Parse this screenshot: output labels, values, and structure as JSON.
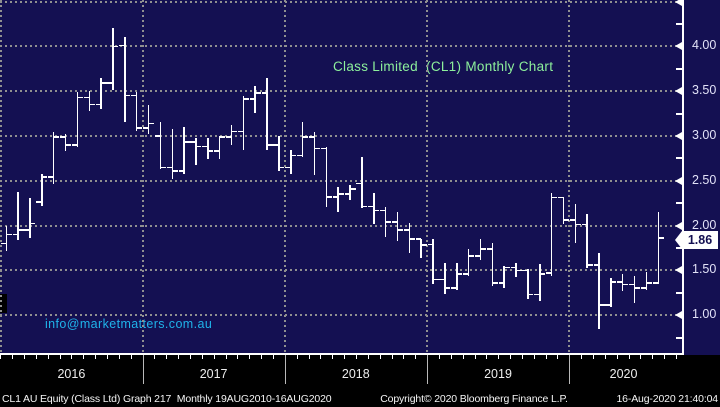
{
  "title": "Class Limited  (CL1) Monthly Chart",
  "watermark": "info@marketmatters.com.au",
  "last_price": {
    "value": 1.86,
    "label": "1.86"
  },
  "colors": {
    "background": "#141052",
    "bar": "#ffffff",
    "grid": "#909090",
    "title_text": "#8df09c",
    "watermark_text": "#1fb3ea",
    "axis_text": "#e2e2f8",
    "status_bar_bg": "#000000",
    "status_bar_text": "#f5f5f5",
    "price_tag_bg": "#ffffff",
    "price_tag_text": "#141052"
  },
  "y_axis": {
    "side": "right",
    "tick_labels": [
      "4.00",
      "3.50",
      "3.00",
      "2.50",
      "2.00",
      "1.50",
      "1.00"
    ],
    "tick_values": [
      4.0,
      3.5,
      3.0,
      2.5,
      2.0,
      1.5,
      1.0
    ],
    "gridline_values": [
      4.5,
      4.0,
      3.5,
      3.0,
      2.5,
      2.0,
      1.5,
      1.0
    ],
    "minor_tick_values": [
      4.25,
      3.75,
      3.25,
      2.75,
      2.25,
      1.75,
      1.25,
      0.75
    ]
  },
  "x_axis": {
    "year_labels": [
      "2016",
      "2017",
      "2018",
      "2019",
      "2020"
    ]
  },
  "status_bar": {
    "left": "CL1 AU Equity (Class Ltd) Graph 217  Monthly 19AUG2010-16AUG2020",
    "center": "Copyright© 2020 Bloomberg Finance L.P.",
    "right": "16-Aug-2020 21:40:04"
  },
  "chart_data": {
    "type": "ohlc-bar",
    "title": "Class Limited  (CL1) Monthly Chart",
    "security": "CL1 AU Equity (Class Ltd)",
    "period": "Monthly",
    "visible_range": "2015-12 to 2020-08",
    "ylim": [
      0.56,
      4.47
    ],
    "grid": "dotted horizontal every 0.50, dotted vertical at year starts",
    "legend_position": "none",
    "last_price": 1.86,
    "x": [
      "2015-12",
      "2016-01",
      "2016-02",
      "2016-03",
      "2016-04",
      "2016-05",
      "2016-06",
      "2016-07",
      "2016-08",
      "2016-09",
      "2016-10",
      "2016-11",
      "2016-12",
      "2017-01",
      "2017-02",
      "2017-03",
      "2017-04",
      "2017-05",
      "2017-06",
      "2017-07",
      "2017-08",
      "2017-09",
      "2017-10",
      "2017-11",
      "2017-12",
      "2018-01",
      "2018-02",
      "2018-03",
      "2018-04",
      "2018-05",
      "2018-06",
      "2018-07",
      "2018-08",
      "2018-09",
      "2018-10",
      "2018-11",
      "2018-12",
      "2019-01",
      "2019-02",
      "2019-03",
      "2019-04",
      "2019-05",
      "2019-06",
      "2019-07",
      "2019-08",
      "2019-09",
      "2019-10",
      "2019-11",
      "2019-12",
      "2020-01",
      "2020-02",
      "2020-03",
      "2020-04",
      "2020-05",
      "2020-06",
      "2020-07",
      "2020-08"
    ],
    "series": [
      {
        "name": "CL1 AU Equity",
        "ohlc": [
          [
            1.85,
            1.88,
            1.72,
            1.78
          ],
          [
            1.8,
            1.99,
            1.72,
            1.9
          ],
          [
            1.9,
            2.37,
            1.84,
            1.95
          ],
          [
            1.95,
            2.31,
            1.86,
            2.02
          ],
          [
            2.26,
            2.58,
            2.22,
            2.54
          ],
          [
            2.54,
            3.04,
            2.46,
            2.99
          ],
          [
            2.99,
            3.02,
            2.83,
            2.9
          ],
          [
            2.9,
            3.49,
            2.88,
            3.43
          ],
          [
            3.43,
            3.5,
            3.28,
            3.35
          ],
          [
            3.35,
            3.65,
            3.3,
            3.59
          ],
          [
            3.59,
            4.2,
            3.51,
            4.0
          ],
          [
            4.01,
            4.1,
            3.15,
            3.45
          ],
          [
            3.45,
            3.49,
            3.05,
            3.09
          ],
          [
            3.09,
            3.35,
            3.02,
            3.14
          ],
          [
            3.0,
            3.15,
            2.63,
            2.65
          ],
          [
            2.65,
            3.08,
            2.52,
            2.61
          ],
          [
            2.61,
            3.1,
            2.58,
            2.93
          ],
          [
            2.93,
            2.98,
            2.68,
            2.88
          ],
          [
            2.88,
            2.98,
            2.74,
            2.83
          ],
          [
            2.83,
            3.0,
            2.74,
            2.99
          ],
          [
            2.99,
            3.12,
            2.9,
            3.05
          ],
          [
            3.05,
            3.45,
            2.84,
            3.41
          ],
          [
            3.41,
            3.56,
            3.26,
            3.48
          ],
          [
            3.48,
            3.65,
            2.84,
            2.9
          ],
          [
            2.9,
            3.0,
            2.61,
            2.65
          ],
          [
            2.65,
            2.84,
            2.58,
            2.78
          ],
          [
            2.78,
            3.15,
            2.76,
            2.99
          ],
          [
            2.99,
            3.04,
            2.56,
            2.86
          ],
          [
            2.86,
            2.88,
            2.21,
            2.32
          ],
          [
            2.32,
            2.43,
            2.15,
            2.35
          ],
          [
            2.35,
            2.45,
            2.28,
            2.41
          ],
          [
            2.47,
            2.76,
            2.19,
            2.21
          ],
          [
            2.21,
            2.36,
            2.02,
            2.17
          ],
          [
            2.17,
            2.21,
            1.87,
            2.04
          ],
          [
            2.04,
            2.15,
            1.83,
            1.95
          ],
          [
            1.95,
            2.03,
            1.69,
            1.85
          ],
          [
            1.85,
            1.85,
            1.64,
            1.78
          ],
          [
            1.79,
            1.85,
            1.35,
            1.4
          ],
          [
            1.4,
            1.58,
            1.24,
            1.3
          ],
          [
            1.3,
            1.58,
            1.28,
            1.46
          ],
          [
            1.46,
            1.74,
            1.44,
            1.66
          ],
          [
            1.66,
            1.85,
            1.61,
            1.74
          ],
          [
            1.74,
            1.8,
            1.32,
            1.36
          ],
          [
            1.36,
            1.55,
            1.3,
            1.53
          ],
          [
            1.53,
            1.58,
            1.43,
            1.5
          ],
          [
            1.5,
            1.52,
            1.18,
            1.23
          ],
          [
            1.23,
            1.57,
            1.16,
            1.46
          ],
          [
            1.47,
            2.36,
            1.44,
            2.31
          ],
          [
            2.31,
            2.32,
            2.02,
            2.06
          ],
          [
            2.06,
            2.24,
            1.81,
            2.01
          ],
          [
            2.01,
            2.13,
            1.52,
            1.56
          ],
          [
            1.56,
            1.69,
            0.85,
            1.11
          ],
          [
            1.11,
            1.41,
            1.09,
            1.37
          ],
          [
            1.37,
            1.46,
            1.27,
            1.34
          ],
          [
            1.34,
            1.44,
            1.13,
            1.3
          ],
          [
            1.3,
            1.48,
            1.28,
            1.36
          ],
          [
            1.36,
            2.15,
            1.35,
            1.86
          ]
        ]
      }
    ]
  }
}
